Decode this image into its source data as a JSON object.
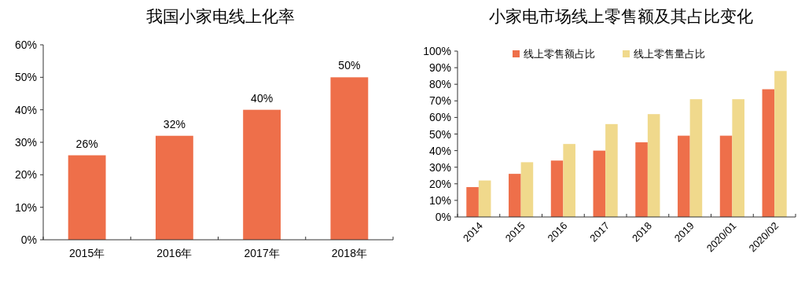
{
  "chart_data": [
    {
      "type": "bar",
      "title": "我国小家电线上化率",
      "categories": [
        "2015年",
        "2016年",
        "2017年",
        "2018年"
      ],
      "series": [
        {
          "color": "#ee6f4a",
          "values": [
            26,
            32,
            40,
            50
          ]
        }
      ],
      "ylim": [
        0,
        60
      ],
      "yticks": [
        {
          "value": 0,
          "label": "0%"
        },
        {
          "value": 10,
          "label": "10%"
        },
        {
          "value": 20,
          "label": "20%"
        },
        {
          "value": 30,
          "label": "30%"
        },
        {
          "value": 40,
          "label": "40%"
        },
        {
          "value": 50,
          "label": "50%"
        },
        {
          "value": 60,
          "label": "60%"
        }
      ],
      "value_labels": [
        "26%",
        "32%",
        "40%",
        "50%"
      ]
    },
    {
      "type": "bar",
      "title": "小家电市场线上零售额及其占比变化",
      "categories": [
        "2014",
        "2015",
        "2016",
        "2017",
        "2018",
        "2019",
        "2020/01",
        "2020/02"
      ],
      "series": [
        {
          "name": "线上零售额占比",
          "color": "#ee6f4a",
          "values": [
            18,
            26,
            34,
            40,
            45,
            49,
            49,
            77
          ]
        },
        {
          "name": "线上零售量占比",
          "color": "#f0d98c",
          "values": [
            22,
            33,
            44,
            56,
            62,
            71,
            71,
            88
          ]
        }
      ],
      "ylim": [
        0,
        100
      ],
      "yticks": [
        {
          "value": 0,
          "label": "0%"
        },
        {
          "value": 10,
          "label": "10%"
        },
        {
          "value": 20,
          "label": "20%"
        },
        {
          "value": 30,
          "label": "30%"
        },
        {
          "value": 40,
          "label": "40%"
        },
        {
          "value": 50,
          "label": "50%"
        },
        {
          "value": 60,
          "label": "60%"
        },
        {
          "value": 70,
          "label": "70%"
        },
        {
          "value": 80,
          "label": "80%"
        },
        {
          "value": 90,
          "label": "90%"
        },
        {
          "value": 100,
          "label": "100%"
        }
      ],
      "legend": "top"
    }
  ]
}
